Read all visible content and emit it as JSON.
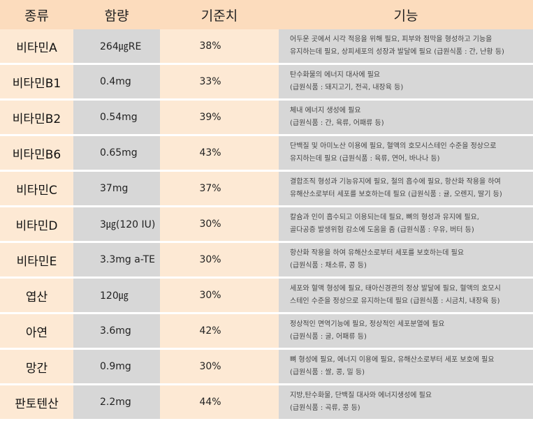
{
  "header": {
    "kind": "종류",
    "amount": "함량",
    "reference": "기준치",
    "function": "기능"
  },
  "rows": [
    {
      "name": "비타민A",
      "amount": "264㎍RE",
      "reference": "38%",
      "line1": "어두운 곳에서 시각 적응을 위해 필요, 피부와 점막을 형성하고 기능을",
      "line2": "유지하는데 필요, 상피세포의 성장과 발달에 필요 (급원식품 : 간, 난황 등)"
    },
    {
      "name": "비타민B1",
      "amount": "0.4mg",
      "reference": "33%",
      "line1": "탄수화물의 에너지 대사에 필요",
      "line2": "(급원식품 : 돼지고기, 전곡, 내장육 등)"
    },
    {
      "name": "비타민B2",
      "amount": "0.54mg",
      "reference": "39%",
      "line1": "체내 에너지 생성에 필요",
      "line2": "(급원식품 : 간, 육류, 어패류 등)"
    },
    {
      "name": "비타민B6",
      "amount": "0.65mg",
      "reference": "43%",
      "line1": "단백질 및 아미노산 이용에 필요, 혈액의 호모시스테인 수준을 정상으로",
      "line2": "유지하는데 필요    (급원식품 : 육류, 연어, 바나나 등)"
    },
    {
      "name": "비타민C",
      "amount": "37mg",
      "reference": "37%",
      "line1": "결합조직 형성과 기능유지에 필요, 철의 흡수에 필요, 항산화 작용을 하여",
      "line2": "유해산소로부터 세포를 보호하는데 필요  (급원식품 : 귤, 오렌지, 딸기 등)"
    },
    {
      "name": "비타민D",
      "amount": "3㎍(120 IU)",
      "reference": "30%",
      "line1": "칼슘과 인이 흡수되고 이용되는데 필요, 뼈의 형성과 유지에 필요,",
      "line2": "골다공증 발생위험 감소에 도움을 줌    (급원식품 : 우유, 버터 등)"
    },
    {
      "name": "비타민E",
      "amount": "3.3mg a-TE",
      "reference": "30%",
      "line1": "항산화 작용을 하여 유해산소로부터 세포를 보호하는데 필요",
      "line2": "(급원식품 : 채소류, 콩 등)"
    },
    {
      "name": "엽산",
      "amount": "120㎍",
      "reference": "30%",
      "line1": "세포와 혈액 형성에 필요, 태아신경관의 정상 발달에 필요, 혈액의 호모시",
      "line2": "스테인 수준을 정상으로 유지하는데 필요 (급원식품 : 시금치, 내장육 등)"
    },
    {
      "name": "아연",
      "amount": "3.6mg",
      "reference": "42%",
      "line1": "정상적인 면역기능에 필요, 정상적인 세포분열에 필요",
      "line2": "(급원식품 : 굴, 어패류 등)"
    },
    {
      "name": "망간",
      "amount": "0.9mg",
      "reference": "30%",
      "line1": "뼈 형성에 필요, 에너지 이용에 필요, 유해산소로부터 세포 보호에 필요",
      "line2": "(급원식품 : 쌀, 콩, 밀 등)"
    },
    {
      "name": "판토텐산",
      "amount": "2.2mg",
      "reference": "44%",
      "line1": "지방,탄수화물, 단백질 대사와 에너지생성에 필요",
      "line2": "(급원식품 : 곡류, 콩 등)"
    }
  ]
}
